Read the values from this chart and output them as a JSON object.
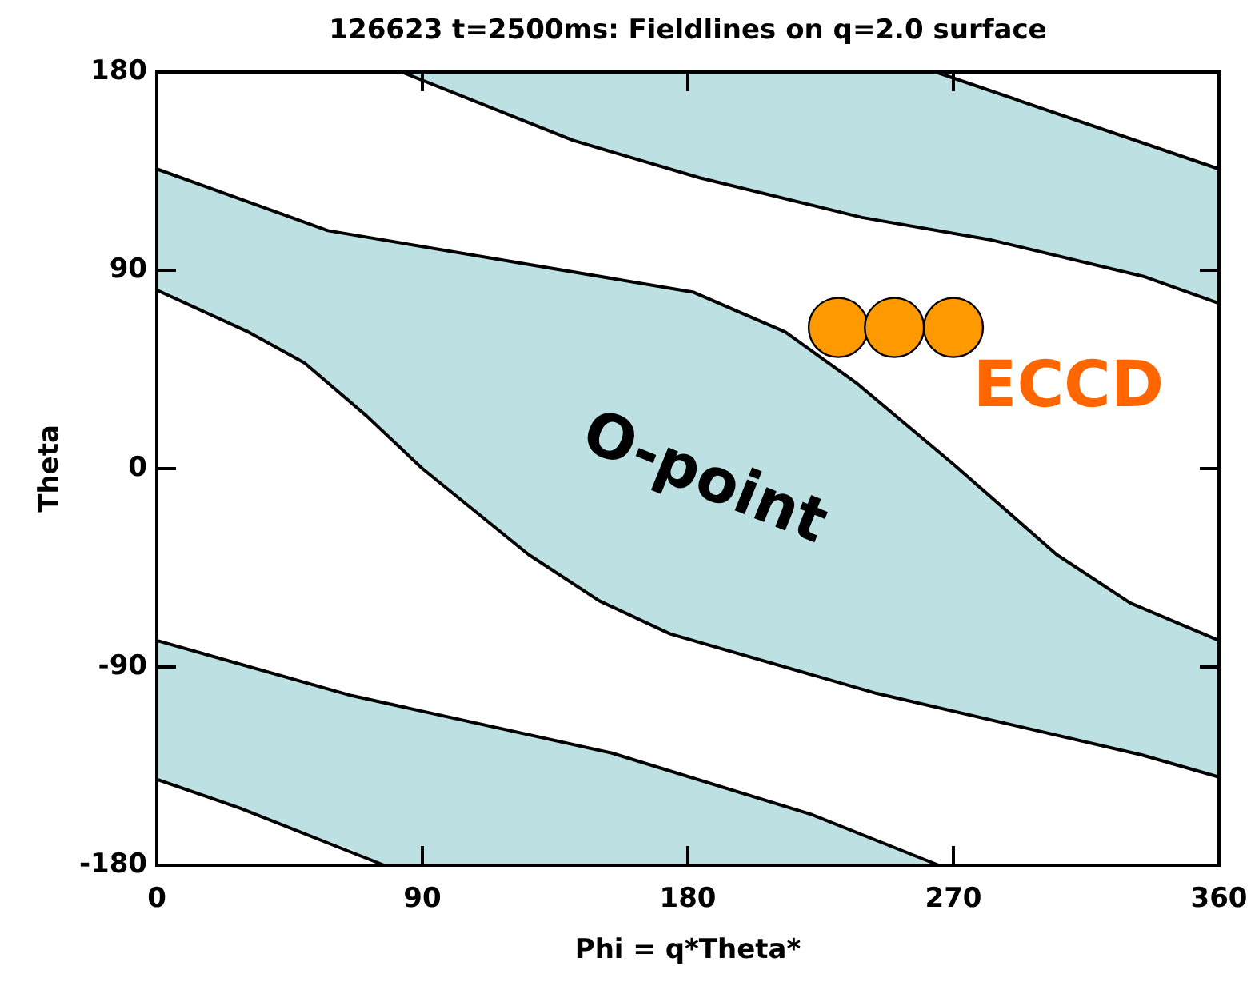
{
  "chart_data": {
    "type": "line",
    "title": "126623 t=2500ms: Fieldlines on q=2.0 surface",
    "xlabel": "Phi = q*Theta*",
    "ylabel": "Theta",
    "xlim": [
      0,
      360
    ],
    "xticks": [
      0,
      90,
      180,
      270,
      360
    ],
    "ylim": [
      -180,
      180
    ],
    "yticks": [
      -180,
      -90,
      0,
      90,
      180
    ],
    "grid": false,
    "marker": "none",
    "line_style": "solid",
    "series": [
      {
        "color": "#bde0e3",
        "x": [
          0,
          31,
          50,
          58,
          71,
          90,
          126,
          150,
          174,
          182,
          213,
          237,
          244,
          270,
          305,
          330,
          334,
          360
        ],
        "values": [
          null,
          null,
          null,
          null,
          null,
          null,
          null,
          null,
          null,
          null,
          null,
          null,
          null,
          null,
          null,
          null,
          null,
          null
        ],
        "upper": [
          136,
          121,
          112,
          108,
          105,
          101,
          93,
          87,
          82,
          80,
          62,
          39,
          31,
          2,
          -39,
          -61,
          -63,
          -78
        ],
        "lower": [
          81,
          62,
          48,
          39,
          24,
          0,
          -39,
          -60,
          -75,
          -78,
          -90,
          -99,
          -102,
          -110,
          -121,
          -129,
          -130,
          -140
        ]
      },
      {
        "color": "#bde0e3",
        "x": [
          83,
          141,
          184,
          239,
          264,
          282,
          335,
          360
        ],
        "values": [
          null,
          null,
          null,
          null,
          null,
          null,
          null,
          null
        ],
        "upper": [
          180,
          180,
          180,
          180,
          180,
          172,
          147,
          136
        ],
        "lower": [
          180,
          149,
          132,
          114,
          108,
          104,
          87,
          75
        ]
      },
      {
        "color": "#bde0e3",
        "x": [
          0,
          28,
          66,
          77,
          154,
          222,
          265
        ],
        "values": [
          null,
          null,
          null,
          null,
          null,
          null,
          null
        ],
        "upper": [
          -78,
          -88,
          -103,
          -106,
          -129,
          -157,
          -180
        ],
        "lower": [
          -141,
          -154,
          -173,
          -180,
          -180,
          -180,
          -180
        ]
      },
      {
        "color": "#000000",
        "x": [
          0,
          58,
          182,
          213,
          237,
          270,
          305,
          330,
          360
        ],
        "values": [
          136,
          108,
          80,
          62,
          39,
          2,
          -39,
          -61,
          -78
        ]
      },
      {
        "color": "#000000",
        "x": [
          0,
          31,
          50,
          71,
          90,
          126,
          150,
          174,
          244,
          334,
          360
        ],
        "values": [
          81,
          62,
          48,
          24,
          0,
          -39,
          -60,
          -75,
          -102,
          -130,
          -140
        ]
      },
      {
        "color": "#000000",
        "x": [
          264,
          360
        ],
        "values": [
          180,
          136
        ]
      },
      {
        "color": "#000000",
        "x": [
          83,
          141,
          184,
          239,
          282,
          335,
          360
        ],
        "values": [
          180,
          149,
          132,
          114,
          104,
          87,
          75
        ]
      },
      {
        "color": "#000000",
        "x": [
          0,
          66,
          154,
          222,
          265
        ],
        "values": [
          -78,
          -103,
          -129,
          -157,
          -180
        ]
      },
      {
        "color": "#000000",
        "x": [
          0,
          28,
          77
        ],
        "values": [
          -141,
          -154,
          -180
        ]
      },
      {
        "type": "scatter",
        "color": "#ff9900",
        "marker": "circle",
        "x": [
          231,
          250,
          270
        ],
        "values": [
          64,
          64,
          64
        ]
      }
    ],
    "annotations": [
      "ECCD",
      "O-point"
    ]
  }
}
